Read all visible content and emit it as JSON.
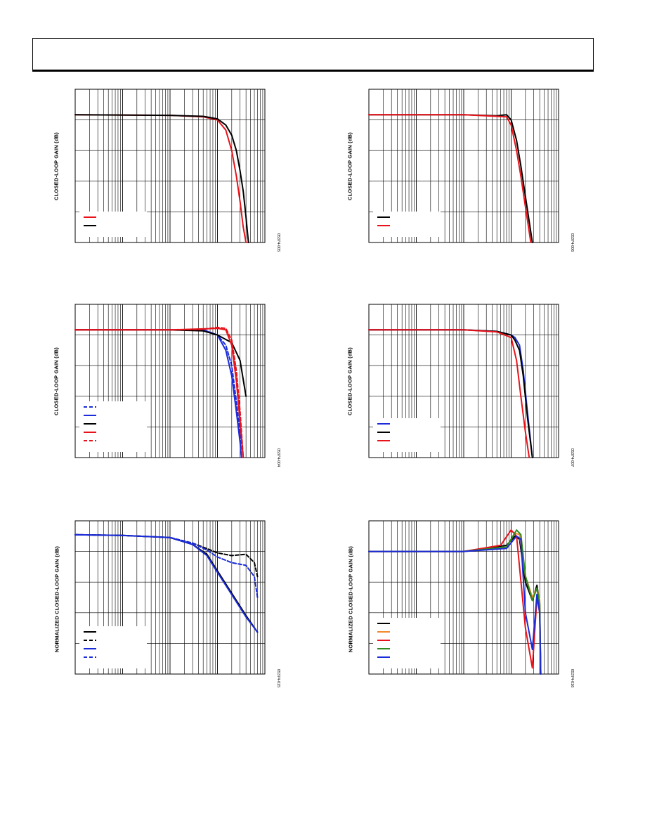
{
  "page": {
    "header_text": ""
  },
  "charts": [
    {
      "id": "chart-1",
      "figure_id": "05374-005",
      "ylabel": "CLOSED-LOOP GAIN (dB)",
      "chart_data": {
        "type": "line",
        "x_scale": "log",
        "xlim": [
          0.1,
          1000
        ],
        "ylim": [
          -25,
          5
        ],
        "grid": true,
        "legend_position": "bottom-left",
        "series": [
          {
            "color": "#e8131a",
            "dashed": false,
            "points": [
              [
                0.1,
                0
              ],
              [
                10,
                -0.1
              ],
              [
                50,
                -0.4
              ],
              [
                100,
                -1
              ],
              [
                150,
                -3
              ],
              [
                200,
                -7
              ],
              [
                250,
                -12
              ],
              [
                300,
                -17
              ],
              [
                350,
                -22
              ],
              [
                400,
                -25
              ]
            ]
          },
          {
            "color": "#000000",
            "dashed": false,
            "points": [
              [
                0.1,
                0
              ],
              [
                10,
                -0.1
              ],
              [
                50,
                -0.3
              ],
              [
                100,
                -0.8
              ],
              [
                150,
                -2
              ],
              [
                200,
                -4
              ],
              [
                250,
                -7
              ],
              [
                300,
                -11
              ],
              [
                350,
                -15
              ],
              [
                400,
                -20
              ],
              [
                450,
                -25
              ]
            ]
          }
        ]
      }
    },
    {
      "id": "chart-2",
      "figure_id": "05374-006",
      "ylabel": "CLOSED-LOOP GAIN (dB)",
      "chart_data": {
        "type": "line",
        "x_scale": "log",
        "xlim": [
          0.1,
          1000
        ],
        "ylim": [
          -25,
          5
        ],
        "grid": true,
        "legend_position": "bottom-left",
        "series": [
          {
            "color": "#000000",
            "dashed": false,
            "points": [
              [
                0.1,
                0
              ],
              [
                10,
                0
              ],
              [
                50,
                -0.2
              ],
              [
                80,
                0
              ],
              [
                100,
                -1
              ],
              [
                130,
                -5
              ],
              [
                160,
                -10
              ],
              [
                200,
                -16
              ],
              [
                250,
                -22
              ],
              [
                280,
                -25
              ]
            ]
          },
          {
            "color": "#e8131a",
            "dashed": false,
            "points": [
              [
                0.1,
                0
              ],
              [
                10,
                0
              ],
              [
                50,
                -0.3
              ],
              [
                80,
                -0.4
              ],
              [
                100,
                -2
              ],
              [
                130,
                -7
              ],
              [
                160,
                -12
              ],
              [
                200,
                -18
              ],
              [
                250,
                -24
              ],
              [
                260,
                -25
              ]
            ]
          }
        ]
      }
    },
    {
      "id": "chart-3",
      "figure_id": "05374-004",
      "ylabel": "CLOSED-LOOP GAIN (dB)",
      "chart_data": {
        "type": "line",
        "x_scale": "log",
        "xlim": [
          0.1,
          1000
        ],
        "ylim": [
          -25,
          5
        ],
        "grid": true,
        "legend_position": "bottom-left",
        "series": [
          {
            "color": "#1a2bd9",
            "dashed": true,
            "points": [
              [
                0.1,
                0
              ],
              [
                10,
                0
              ],
              [
                50,
                0
              ],
              [
                100,
                -1
              ],
              [
                150,
                -3
              ],
              [
                200,
                -7
              ],
              [
                250,
                -14
              ],
              [
                300,
                -20
              ],
              [
                350,
                -25
              ]
            ]
          },
          {
            "color": "#1a2bd9",
            "dashed": false,
            "points": [
              [
                0.1,
                0
              ],
              [
                10,
                0
              ],
              [
                50,
                0
              ],
              [
                100,
                -1
              ],
              [
                150,
                -4
              ],
              [
                200,
                -9
              ],
              [
                250,
                -16
              ],
              [
                300,
                -22
              ],
              [
                320,
                -25
              ]
            ]
          },
          {
            "color": "#000000",
            "dashed": false,
            "points": [
              [
                0.1,
                0
              ],
              [
                10,
                0
              ],
              [
                50,
                -0.2
              ],
              [
                100,
                -1
              ],
              [
                200,
                -2.5
              ],
              [
                300,
                -6
              ],
              [
                400,
                -13
              ]
            ]
          },
          {
            "color": "#e8131a",
            "dashed": false,
            "points": [
              [
                0.1,
                0
              ],
              [
                10,
                0
              ],
              [
                50,
                0.2
              ],
              [
                100,
                0.3
              ],
              [
                150,
                0
              ],
              [
                200,
                -3
              ],
              [
                250,
                -10
              ],
              [
                300,
                -18
              ],
              [
                350,
                -25
              ]
            ]
          },
          {
            "color": "#e8131a",
            "dashed": true,
            "points": [
              [
                0.1,
                0
              ],
              [
                10,
                0
              ],
              [
                50,
                0.1
              ],
              [
                100,
                0.5
              ],
              [
                150,
                0.3
              ],
              [
                200,
                -2
              ],
              [
                250,
                -8
              ],
              [
                300,
                -16
              ],
              [
                350,
                -25
              ]
            ]
          }
        ]
      }
    },
    {
      "id": "chart-4",
      "figure_id": "05374-007",
      "ylabel": "CLOSED-LOOP GAIN (dB)",
      "chart_data": {
        "type": "line",
        "x_scale": "log",
        "xlim": [
          0.1,
          1000
        ],
        "ylim": [
          -25,
          5
        ],
        "grid": true,
        "legend_position": "bottom-left",
        "series": [
          {
            "color": "#1a2bd9",
            "dashed": false,
            "points": [
              [
                0.1,
                0
              ],
              [
                10,
                0
              ],
              [
                50,
                -0.3
              ],
              [
                100,
                -1
              ],
              [
                120,
                -1.5
              ],
              [
                150,
                -3
              ],
              [
                180,
                -8
              ],
              [
                220,
                -16
              ],
              [
                280,
                -25
              ]
            ]
          },
          {
            "color": "#000000",
            "dashed": false,
            "points": [
              [
                0.1,
                0
              ],
              [
                10,
                0
              ],
              [
                50,
                -0.3
              ],
              [
                100,
                -1
              ],
              [
                120,
                -2
              ],
              [
                150,
                -4
              ],
              [
                180,
                -9
              ],
              [
                220,
                -17
              ],
              [
                280,
                -25
              ]
            ]
          },
          {
            "color": "#e8131a",
            "dashed": false,
            "points": [
              [
                0.1,
                0
              ],
              [
                10,
                0
              ],
              [
                50,
                -0.4
              ],
              [
                100,
                -1.5
              ],
              [
                130,
                -6
              ],
              [
                160,
                -13
              ],
              [
                200,
                -20
              ],
              [
                240,
                -25
              ]
            ]
          }
        ]
      }
    },
    {
      "id": "chart-5",
      "figure_id": "05374-015",
      "ylabel": "NORMALIZED CLOSED-LOOP GAIN (dB)",
      "chart_data": {
        "type": "line",
        "x_scale": "log",
        "xlim": [
          0.1,
          1000
        ],
        "ylim": [
          -1,
          0.1
        ],
        "grid": true,
        "legend_position": "bottom-left",
        "series": [
          {
            "color": "#000000",
            "dashed": false,
            "points": [
              [
                0.1,
                0
              ],
              [
                1,
                -0.005
              ],
              [
                10,
                -0.02
              ],
              [
                30,
                -0.07
              ],
              [
                60,
                -0.14
              ],
              [
                100,
                -0.26
              ],
              [
                200,
                -0.42
              ],
              [
                400,
                -0.58
              ],
              [
                700,
                -0.7
              ]
            ]
          },
          {
            "color": "#000000",
            "dashed": true,
            "points": [
              [
                0.1,
                0
              ],
              [
                1,
                -0.005
              ],
              [
                10,
                -0.02
              ],
              [
                30,
                -0.06
              ],
              [
                60,
                -0.1
              ],
              [
                100,
                -0.13
              ],
              [
                200,
                -0.15
              ],
              [
                400,
                -0.14
              ],
              [
                600,
                -0.2
              ],
              [
                700,
                -0.3
              ]
            ]
          },
          {
            "color": "#1a2bd9",
            "dashed": false,
            "points": [
              [
                0.1,
                0
              ],
              [
                1,
                -0.005
              ],
              [
                10,
                -0.02
              ],
              [
                30,
                -0.07
              ],
              [
                60,
                -0.15
              ],
              [
                100,
                -0.27
              ],
              [
                200,
                -0.43
              ],
              [
                400,
                -0.59
              ],
              [
                700,
                -0.7
              ]
            ]
          },
          {
            "color": "#1a2bd9",
            "dashed": true,
            "points": [
              [
                0.1,
                0
              ],
              [
                1,
                -0.005
              ],
              [
                10,
                -0.02
              ],
              [
                30,
                -0.06
              ],
              [
                60,
                -0.11
              ],
              [
                100,
                -0.16
              ],
              [
                200,
                -0.2
              ],
              [
                400,
                -0.22
              ],
              [
                600,
                -0.3
              ],
              [
                700,
                -0.45
              ]
            ]
          }
        ]
      }
    },
    {
      "id": "chart-6",
      "figure_id": "05374-016",
      "ylabel": "NORMALIZED CLOSED-LOOP GAIN (dB)",
      "chart_data": {
        "type": "line",
        "x_scale": "log",
        "xlim": [
          0.1,
          1000
        ],
        "ylim": [
          -4,
          1
        ],
        "grid": true,
        "legend_position": "bottom-left",
        "series": [
          {
            "color": "#000000",
            "dashed": false,
            "points": [
              [
                0.1,
                0
              ],
              [
                10,
                0
              ],
              [
                80,
                0.2
              ],
              [
                120,
                0.5
              ],
              [
                150,
                0.4
              ],
              [
                200,
                -1
              ],
              [
                280,
                -1.6
              ],
              [
                350,
                -1.1
              ],
              [
                400,
                -1.7
              ],
              [
                420,
                -4
              ]
            ]
          },
          {
            "color": "#f08a2b",
            "dashed": false,
            "points": [
              [
                0.1,
                0
              ],
              [
                10,
                0
              ],
              [
                80,
                0.15
              ],
              [
                120,
                0.6
              ],
              [
                150,
                0.55
              ],
              [
                200,
                -0.8
              ],
              [
                280,
                -1.5
              ],
              [
                350,
                -1.2
              ],
              [
                400,
                -1.6
              ],
              [
                420,
                -4
              ]
            ]
          },
          {
            "color": "#e8131a",
            "dashed": false,
            "points": [
              [
                0.1,
                0
              ],
              [
                10,
                0
              ],
              [
                60,
                0.2
              ],
              [
                100,
                0.7
              ],
              [
                130,
                0.5
              ],
              [
                200,
                -2.5
              ],
              [
                280,
                -3.8
              ],
              [
                350,
                -1.5
              ],
              [
                400,
                -2
              ],
              [
                420,
                -4
              ]
            ]
          },
          {
            "color": "#2f8a1f",
            "dashed": false,
            "points": [
              [
                0.1,
                0
              ],
              [
                10,
                0
              ],
              [
                80,
                0.15
              ],
              [
                130,
                0.7
              ],
              [
                160,
                0.55
              ],
              [
                200,
                -0.8
              ],
              [
                280,
                -1.6
              ],
              [
                350,
                -1.2
              ],
              [
                400,
                -1.7
              ],
              [
                420,
                -4
              ]
            ]
          },
          {
            "color": "#1a2bd9",
            "dashed": false,
            "points": [
              [
                0.1,
                0
              ],
              [
                10,
                0
              ],
              [
                80,
                0.1
              ],
              [
                130,
                0.5
              ],
              [
                160,
                0.4
              ],
              [
                200,
                -2
              ],
              [
                280,
                -3.2
              ],
              [
                350,
                -1.4
              ],
              [
                400,
                -2
              ],
              [
                420,
                -4
              ]
            ]
          }
        ]
      }
    }
  ]
}
